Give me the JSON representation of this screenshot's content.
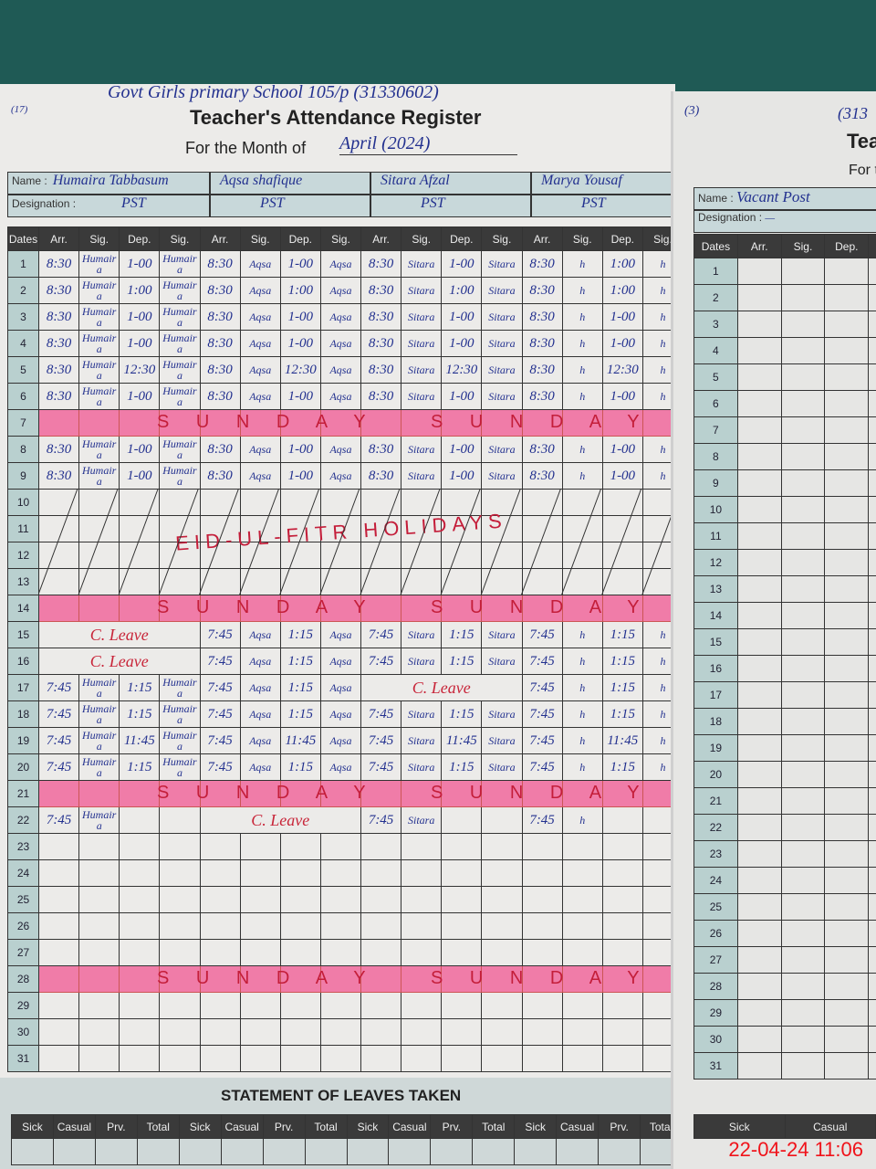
{
  "left_page": {
    "school": "Govt Girls primary School 105/p (31330602)",
    "page_no": "(17)",
    "title": "Teacher's Attendance Register",
    "month_label": "For the Month of",
    "month_value": "April (2024)",
    "name_label": "Name :",
    "designation_label": "Designation :",
    "teachers": [
      {
        "name": "Humaira Tabbasum",
        "designation": "PST"
      },
      {
        "name": "Aqsa shafique",
        "designation": "PST"
      },
      {
        "name": "Sitara Afzal",
        "designation": "PST"
      },
      {
        "name": "Marya Yousaf",
        "designation": "PST"
      }
    ],
    "columns": [
      "Dates",
      "Arr.",
      "Sig.",
      "Dep.",
      "Sig.",
      "Arr.",
      "Sig.",
      "Dep.",
      "Sig.",
      "Arr.",
      "Sig.",
      "Dep.",
      "Sig.",
      "Arr.",
      "Sig.",
      "Dep.",
      "Sig."
    ],
    "sunday_text": "S U N D A Y",
    "holiday_text": "EID-UL-FITR HOLIDAYS",
    "rows": [
      {
        "date": "1",
        "cells": [
          "8:30",
          "Humaira",
          "1-00",
          "Humaira",
          "8:30",
          "Aqsa",
          "1-00",
          "Aqsa",
          "8:30",
          "Sitara",
          "1-00",
          "Sitara",
          "8:30",
          "h",
          "1:00",
          "h"
        ]
      },
      {
        "date": "2",
        "cells": [
          "8:30",
          "Humaira",
          "1:00",
          "Humaira",
          "8:30",
          "Aqsa",
          "1:00",
          "Aqsa",
          "8:30",
          "Sitara",
          "1:00",
          "Sitara",
          "8:30",
          "h",
          "1:00",
          "h"
        ]
      },
      {
        "date": "3",
        "cells": [
          "8:30",
          "Humaira",
          "1-00",
          "Humaira",
          "8:30",
          "Aqsa",
          "1-00",
          "Aqsa",
          "8:30",
          "Sitara",
          "1-00",
          "Sitara",
          "8:30",
          "h",
          "1-00",
          "h"
        ]
      },
      {
        "date": "4",
        "cells": [
          "8:30",
          "Humaira",
          "1-00",
          "Humaira",
          "8:30",
          "Aqsa",
          "1-00",
          "Aqsa",
          "8:30",
          "Sitara",
          "1-00",
          "Sitara",
          "8:30",
          "h",
          "1-00",
          "h"
        ]
      },
      {
        "date": "5",
        "cells": [
          "8:30",
          "Humaira",
          "12:30",
          "Humaira",
          "8:30",
          "Aqsa",
          "12:30",
          "Aqsa",
          "8:30",
          "Sitara",
          "12:30",
          "Sitara",
          "8:30",
          "h",
          "12:30",
          "h"
        ]
      },
      {
        "date": "6",
        "cells": [
          "8:30",
          "Humaira",
          "1-00",
          "Humaira",
          "8:30",
          "Aqsa",
          "1-00",
          "Aqsa",
          "8:30",
          "Sitara",
          "1-00",
          "Sitara",
          "8:30",
          "h",
          "1-00",
          "h"
        ]
      },
      {
        "date": "7",
        "sunday": true
      },
      {
        "date": "8",
        "cells": [
          "8:30",
          "Humaira",
          "1-00",
          "Humaira",
          "8:30",
          "Aqsa",
          "1-00",
          "Aqsa",
          "8:30",
          "Sitara",
          "1-00",
          "Sitara",
          "8:30",
          "h",
          "1-00",
          "h"
        ]
      },
      {
        "date": "9",
        "cells": [
          "8:30",
          "Humaira",
          "1-00",
          "Humaira",
          "8:30",
          "Aqsa",
          "1-00",
          "Aqsa",
          "8:30",
          "Sitara",
          "1-00",
          "Sitara",
          "8:30",
          "h",
          "1-00",
          "h"
        ]
      },
      {
        "date": "10",
        "holiday": true
      },
      {
        "date": "11",
        "holiday": true
      },
      {
        "date": "12",
        "holiday": true
      },
      {
        "date": "13",
        "holiday": true
      },
      {
        "date": "14",
        "sunday": true
      },
      {
        "date": "15",
        "cells": [
          "C. Leave",
          "",
          "",
          "",
          "7:45",
          "Aqsa",
          "1:15",
          "Aqsa",
          "7:45",
          "Sitara",
          "1:15",
          "Sitara",
          "7:45",
          "h",
          "1:15",
          "h"
        ]
      },
      {
        "date": "16",
        "cells": [
          "C. Leave",
          "",
          "",
          "",
          "7:45",
          "Aqsa",
          "1:15",
          "Aqsa",
          "7:45",
          "Sitara",
          "1:15",
          "Sitara",
          "7:45",
          "h",
          "1:15",
          "h"
        ]
      },
      {
        "date": "17",
        "cells": [
          "7:45",
          "Humaira",
          "1:15",
          "Humaira",
          "7:45",
          "Aqsa",
          "1:15",
          "Aqsa",
          "C. Leave",
          "",
          "",
          "",
          "7:45",
          "h",
          "1:15",
          "h"
        ]
      },
      {
        "date": "18",
        "cells": [
          "7:45",
          "Humaira",
          "1:15",
          "Humaira",
          "7:45",
          "Aqsa",
          "1:15",
          "Aqsa",
          "7:45",
          "Sitara",
          "1:15",
          "Sitara",
          "7:45",
          "h",
          "1:15",
          "h"
        ]
      },
      {
        "date": "19",
        "cells": [
          "7:45",
          "Humaira",
          "11:45",
          "Humaira",
          "7:45",
          "Aqsa",
          "11:45",
          "Aqsa",
          "7:45",
          "Sitara",
          "11:45",
          "Sitara",
          "7:45",
          "h",
          "11:45",
          "h"
        ]
      },
      {
        "date": "20",
        "cells": [
          "7:45",
          "Humaira",
          "1:15",
          "Humaira",
          "7:45",
          "Aqsa",
          "1:15",
          "Aqsa",
          "7:45",
          "Sitara",
          "1:15",
          "Sitara",
          "7:45",
          "h",
          "1:15",
          "h"
        ]
      },
      {
        "date": "21",
        "sunday": true
      },
      {
        "date": "22",
        "cells": [
          "7:45",
          "Humaira",
          "",
          "",
          "C. Leave",
          "",
          "",
          "",
          "7:45",
          "Sitara",
          "",
          "",
          "7:45",
          "h",
          "",
          ""
        ]
      },
      {
        "date": "23"
      },
      {
        "date": "24"
      },
      {
        "date": "25"
      },
      {
        "date": "26"
      },
      {
        "date": "27"
      },
      {
        "date": "28",
        "sunday": true
      },
      {
        "date": "29"
      },
      {
        "date": "30"
      },
      {
        "date": "31"
      }
    ],
    "leaves_title": "STATEMENT OF LEAVES TAKEN",
    "leaves_columns": [
      "Sick",
      "Casual",
      "Prv.",
      "Total",
      "Sick",
      "Casual",
      "Prv.",
      "Total",
      "Sick",
      "Casual",
      "Prv.",
      "Total",
      "Sick",
      "Casual",
      "Prv.",
      "Total"
    ]
  },
  "right_page": {
    "page_no": "(3)",
    "code_fragment": "(313",
    "title_fragment": "Tea",
    "month_fragment": "For t",
    "name_label": "Name :",
    "name_value": "Vacant Post",
    "designation_label": "Designation :",
    "designation_value": "—",
    "columns": [
      "Dates",
      "Arr.",
      "Sig.",
      "Dep.",
      "Sig."
    ],
    "dates": [
      "1",
      "2",
      "3",
      "4",
      "5",
      "6",
      "7",
      "8",
      "9",
      "10",
      "11",
      "12",
      "13",
      "14",
      "15",
      "16",
      "17",
      "18",
      "19",
      "20",
      "21",
      "22",
      "23",
      "24",
      "25",
      "26",
      "27",
      "28",
      "29",
      "30",
      "31"
    ],
    "leaves_columns": [
      "Sick",
      "Casual"
    ]
  },
  "timestamp": "22-04-24  11:06"
}
